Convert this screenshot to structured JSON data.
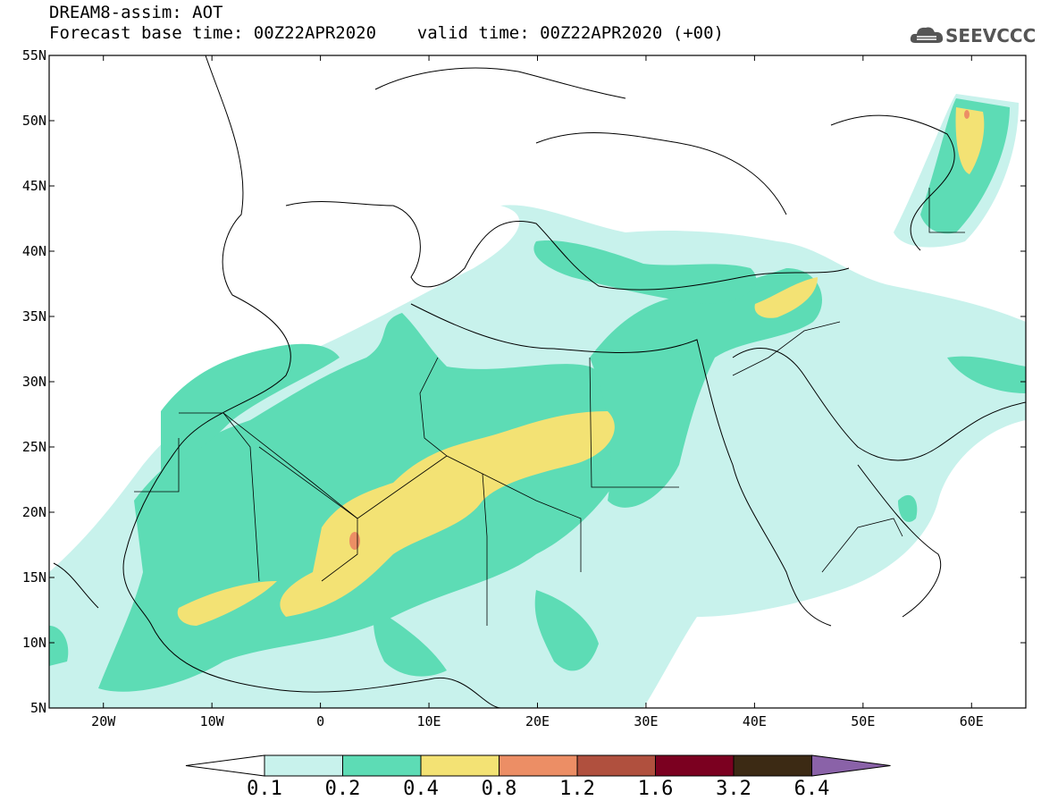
{
  "title": {
    "line1": "DREAM8-assim: AOT",
    "line2": "Forecast base time: 00Z22APR2020    valid time: 00Z22APR2020 (+00)"
  },
  "logo": {
    "text": "SEEVCCC",
    "icon": "cloud-icon"
  },
  "map": {
    "lon_range": [
      -25,
      65
    ],
    "lat_range": [
      5,
      55
    ],
    "lat_labels": [
      "55N",
      "50N",
      "45N",
      "40N",
      "35N",
      "30N",
      "25N",
      "20N",
      "15N",
      "10N",
      "5N"
    ],
    "lon_labels": [
      "20W",
      "10W",
      "0",
      "10E",
      "20E",
      "30E",
      "40E",
      "50E",
      "60E"
    ]
  },
  "colorbar": {
    "colors": [
      "#c8f2ec",
      "#5ddcb5",
      "#f3e274",
      "#ec8e65",
      "#b0503e",
      "#7b0020",
      "#3c2a14",
      "#8a62a8"
    ],
    "labels": [
      "0.1",
      "0.2",
      "0.4",
      "0.8",
      "1.2",
      "1.6",
      "3.2",
      "6.4"
    ]
  }
}
